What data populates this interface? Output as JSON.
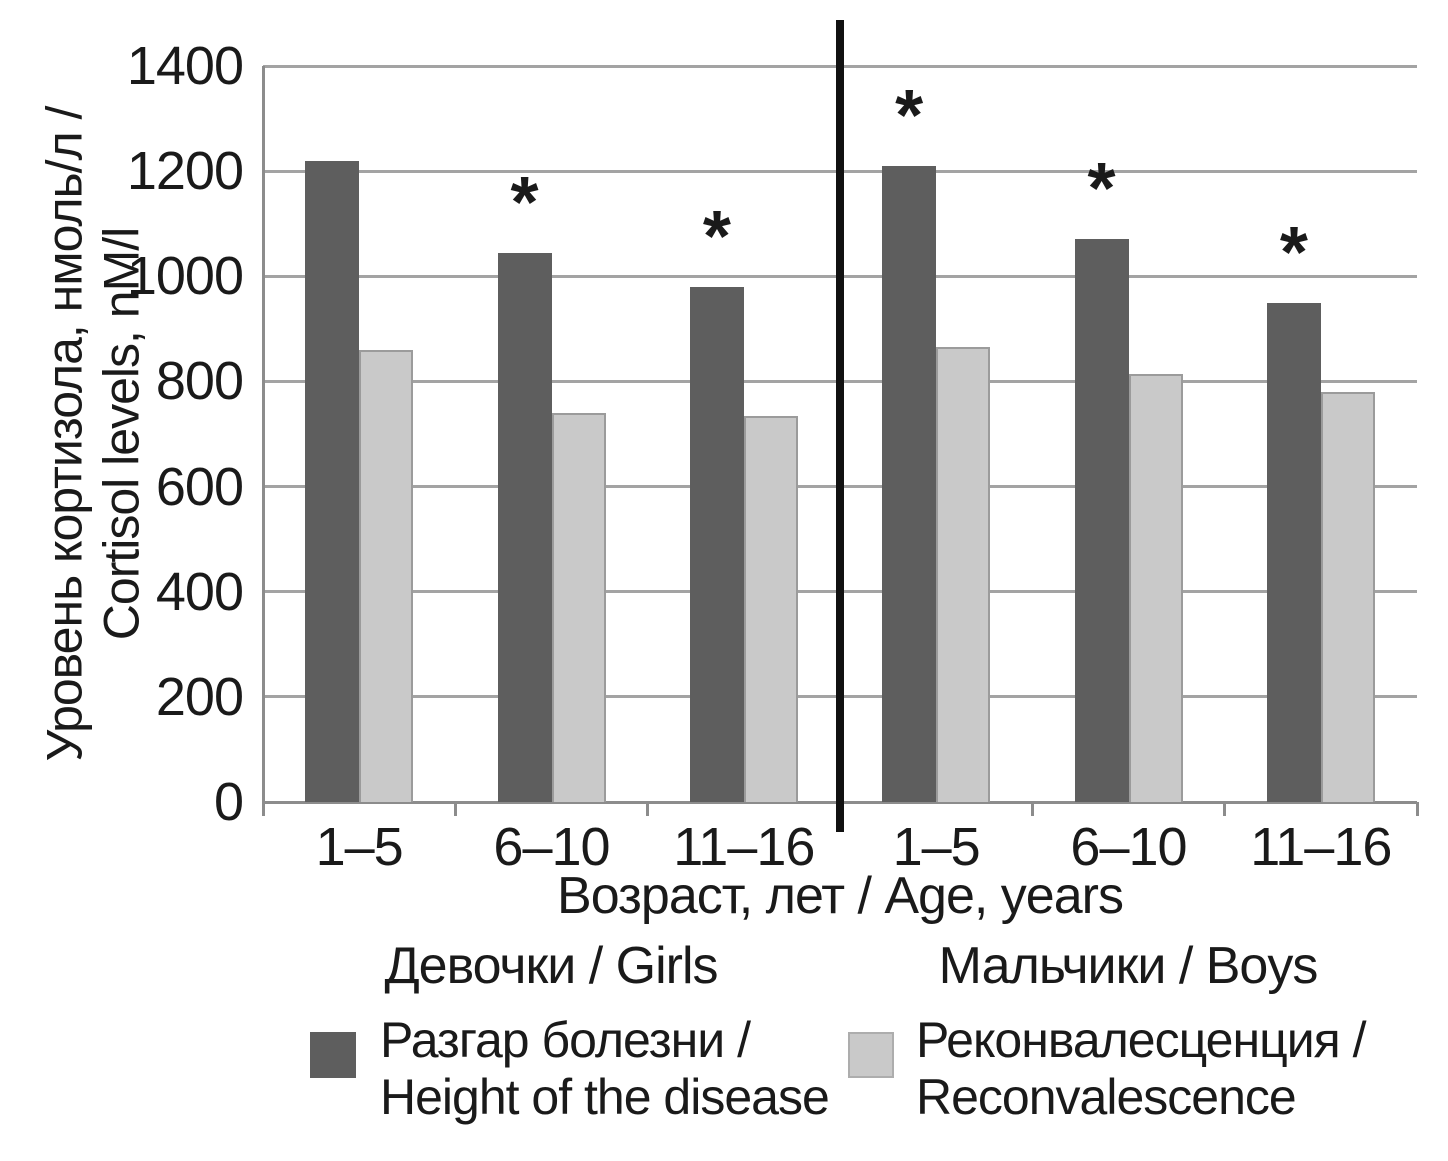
{
  "figure": {
    "significance_marker": "*"
  },
  "chart_data": {
    "type": "bar",
    "title": "",
    "ylabel": "Уровень кортизола, нмоль/л / Cortisol levels, nM/l",
    "xlabel": "Возраст, лет / Age, years",
    "ylim": [
      0,
      1400
    ],
    "ytick_step": 200,
    "grid": true,
    "legend_position": "bottom",
    "section_labels": [
      "Девочки / Girls",
      "Мальчики / Boys"
    ],
    "categories": [
      "1–5",
      "6–10",
      "11–16",
      "1–5",
      "6–10",
      "11–16"
    ],
    "series": [
      {
        "name": "Разгар болезни / Height of the disease",
        "color": "#5e5e5e",
        "values": [
          1220,
          1045,
          980,
          1210,
          1070,
          950
        ],
        "significant": [
          false,
          true,
          true,
          true,
          true,
          true
        ]
      },
      {
        "name": "Реконвалесценция / Reconvalescence",
        "color": "#c9c9c9",
        "values": [
          860,
          740,
          735,
          865,
          815,
          780
        ],
        "significant": [
          false,
          false,
          false,
          false,
          false,
          false
        ]
      }
    ]
  }
}
